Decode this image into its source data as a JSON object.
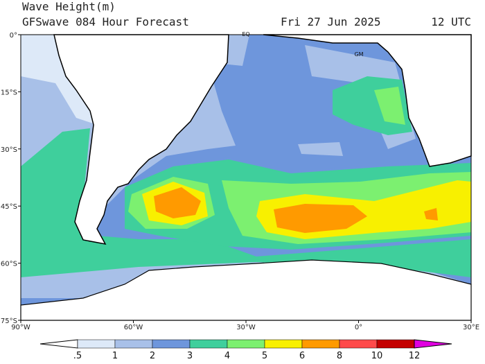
{
  "header": {
    "title": "Wave Height(m)",
    "subtitle": "GFSwave 084 Hour Forecast",
    "date": "Fri 27 Jun 2025",
    "time": "12 UTC"
  },
  "map": {
    "lat_labels": [
      "0°",
      "15°S",
      "30°S",
      "45°S",
      "60°S",
      "75°S"
    ],
    "lon_labels": [
      "90°W",
      "60°W",
      "30°W",
      "0°",
      "30°E"
    ],
    "place_labels": [
      "EQ",
      "GM"
    ]
  },
  "colorbar": {
    "labels": [
      ".5",
      "1",
      "2",
      "3",
      "4",
      "5",
      "6",
      "8",
      "10",
      "12"
    ],
    "colors": [
      "#ffffff",
      "#dde9f8",
      "#a8c0e8",
      "#6e96dc",
      "#3fcf9c",
      "#7cf070",
      "#f8f000",
      "#ff9a00",
      "#ff4a4a",
      "#c40000",
      "#e000e0"
    ]
  }
}
